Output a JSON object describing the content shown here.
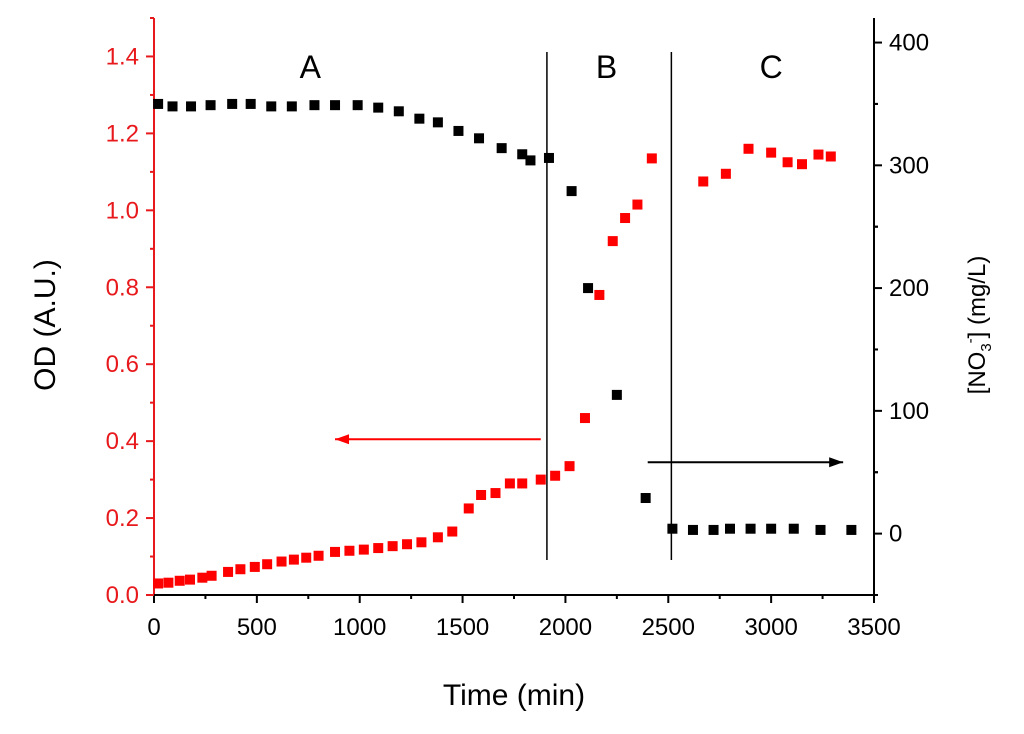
{
  "chart_data": {
    "type": "scatter",
    "xlabel": "Time (min)",
    "ylabel_left": "OD (A.U.)",
    "ylabel_right": {
      "prefix": "[NO",
      "sub": "3",
      "sup": "-",
      "suffix": "] (mg/L)"
    },
    "xlim": [
      0,
      3500
    ],
    "ylim_left": [
      0.0,
      1.5
    ],
    "ylim_right": [
      -50,
      420
    ],
    "x_ticks": [
      0,
      500,
      1000,
      1500,
      2000,
      2500,
      3000,
      3500
    ],
    "y_ticks_left": [
      0.0,
      0.2,
      0.4,
      0.6,
      0.8,
      1.0,
      1.2,
      1.4
    ],
    "y_ticks_right": [
      0,
      100,
      200,
      300,
      400
    ],
    "regions": [
      {
        "label": "A",
        "x": 760
      },
      {
        "label": "B",
        "x": 2200
      },
      {
        "label": "C",
        "x": 3000
      }
    ],
    "region_boundaries": [
      1910,
      2515
    ],
    "annotations": [
      {
        "type": "arrow",
        "direction": "left",
        "axis": "left",
        "color": "#ff0000",
        "from_x": 1880,
        "to_x": 880,
        "y": 0.405
      },
      {
        "type": "arrow",
        "direction": "right",
        "axis": "left",
        "color": "#000000",
        "from_x": 2400,
        "to_x": 3350,
        "y": 0.345
      }
    ],
    "series": [
      {
        "name": "OD",
        "axis": "left",
        "color": "#ff0000",
        "points": [
          [
            20,
            0.03
          ],
          [
            70,
            0.032
          ],
          [
            125,
            0.037
          ],
          [
            175,
            0.04
          ],
          [
            235,
            0.045
          ],
          [
            280,
            0.05
          ],
          [
            360,
            0.06
          ],
          [
            420,
            0.067
          ],
          [
            490,
            0.073
          ],
          [
            550,
            0.08
          ],
          [
            620,
            0.087
          ],
          [
            680,
            0.092
          ],
          [
            740,
            0.097
          ],
          [
            800,
            0.102
          ],
          [
            880,
            0.112
          ],
          [
            950,
            0.115
          ],
          [
            1020,
            0.118
          ],
          [
            1090,
            0.122
          ],
          [
            1160,
            0.127
          ],
          [
            1230,
            0.132
          ],
          [
            1300,
            0.137
          ],
          [
            1380,
            0.15
          ],
          [
            1450,
            0.165
          ],
          [
            1530,
            0.225
          ],
          [
            1590,
            0.26
          ],
          [
            1660,
            0.265
          ],
          [
            1730,
            0.29
          ],
          [
            1790,
            0.29
          ],
          [
            1880,
            0.3
          ],
          [
            1950,
            0.31
          ],
          [
            2020,
            0.335
          ],
          [
            2095,
            0.46
          ],
          [
            2165,
            0.78
          ],
          [
            2230,
            0.92
          ],
          [
            2290,
            0.98
          ],
          [
            2350,
            1.015
          ],
          [
            2420,
            1.135
          ],
          [
            2670,
            1.075
          ],
          [
            2780,
            1.095
          ],
          [
            2890,
            1.16
          ],
          [
            3000,
            1.15
          ],
          [
            3080,
            1.125
          ],
          [
            3150,
            1.12
          ],
          [
            3230,
            1.145
          ],
          [
            3290,
            1.14
          ]
        ]
      },
      {
        "name": "[NO3-]",
        "axis": "right",
        "color": "#000000",
        "points": [
          [
            20,
            350
          ],
          [
            90,
            348
          ],
          [
            180,
            348
          ],
          [
            275,
            349
          ],
          [
            380,
            350
          ],
          [
            470,
            350
          ],
          [
            570,
            348
          ],
          [
            670,
            348
          ],
          [
            780,
            349
          ],
          [
            880,
            349
          ],
          [
            990,
            349
          ],
          [
            1090,
            347
          ],
          [
            1190,
            344
          ],
          [
            1290,
            338
          ],
          [
            1380,
            335
          ],
          [
            1480,
            328
          ],
          [
            1580,
            322
          ],
          [
            1690,
            314
          ],
          [
            1790,
            309
          ],
          [
            1830,
            304
          ],
          [
            1920,
            306
          ],
          [
            2030,
            279
          ],
          [
            2110,
            200
          ],
          [
            2250,
            113
          ],
          [
            2390,
            29
          ],
          [
            2520,
            4
          ],
          [
            2620,
            3
          ],
          [
            2720,
            3
          ],
          [
            2800,
            4
          ],
          [
            2900,
            4
          ],
          [
            3000,
            4
          ],
          [
            3110,
            4
          ],
          [
            3240,
            3
          ],
          [
            3390,
            3
          ]
        ]
      }
    ]
  }
}
